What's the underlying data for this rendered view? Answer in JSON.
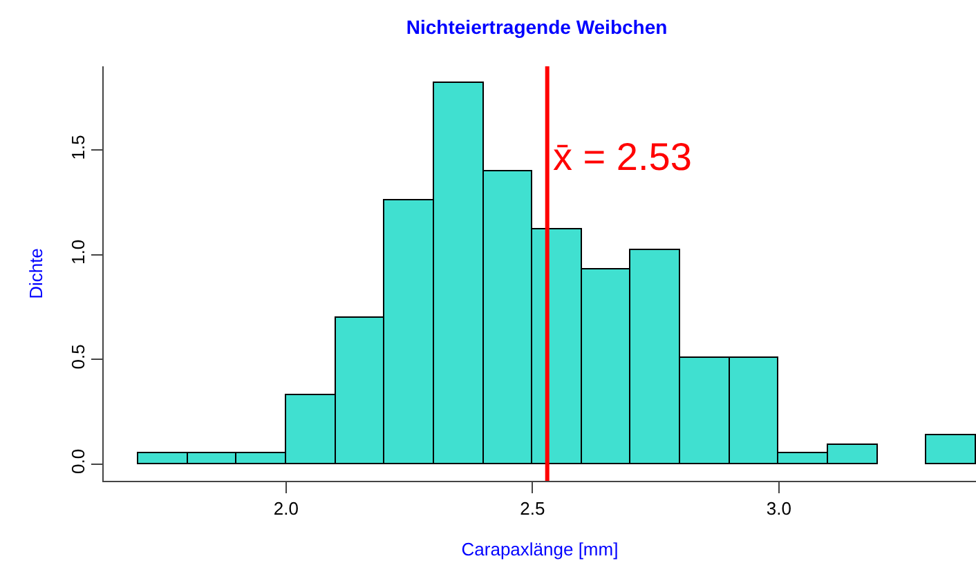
{
  "chart_data": {
    "type": "histogram",
    "title": "Nichteiertragende Weibchen",
    "xlabel": "Carapaxlänge [mm]",
    "ylabel": "Dichte",
    "bins": [
      1.7,
      1.8,
      1.9,
      2.0,
      2.1,
      2.2,
      2.3,
      2.4,
      2.5,
      2.6,
      2.7,
      2.8,
      2.9,
      3.0,
      3.1,
      3.2,
      3.3,
      3.4
    ],
    "values": [
      0.049,
      0.049,
      0.049,
      0.33,
      0.7,
      1.26,
      1.82,
      1.4,
      1.12,
      0.93,
      1.02,
      0.51,
      0.51,
      0.049,
      0.093,
      0,
      0.14
    ],
    "color": "#40e0d0",
    "xlim": [
      1.63,
      3.4
    ],
    "ylim": [
      -0.08,
      1.9
    ],
    "xticks": [
      {
        "value": 2.0,
        "label": "2.0"
      },
      2.5,
      {
        "value": 3.0,
        "label": "3.0"
      }
    ],
    "yticks": [
      {
        "value": 0,
        "label": "0.0"
      },
      0.5,
      {
        "value": 1,
        "label": "1.0"
      },
      1.5
    ],
    "ref_lines": [
      {
        "axis": "x",
        "value": 2.53,
        "label": "x̄ = 2.53",
        "color": "#ff0000"
      }
    ]
  }
}
